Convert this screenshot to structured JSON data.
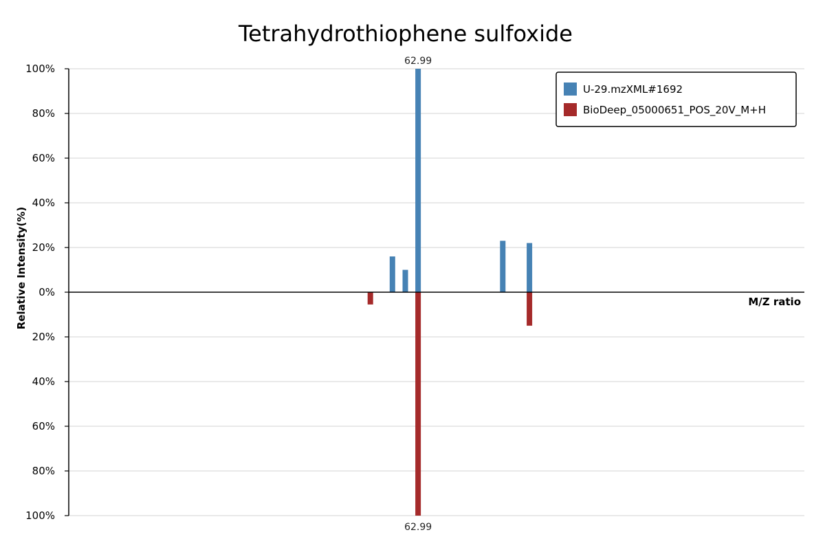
{
  "chart_data": {
    "type": "bar",
    "title": "Tetrahydrothiophene sulfoxide",
    "xlabel": "M/Z ratio",
    "ylabel": "Relative Intensity(%)",
    "y_ticks_top": [
      "0%",
      "20%",
      "40%",
      "60%",
      "80%",
      "100%"
    ],
    "y_ticks_bottom": [
      "20%",
      "40%",
      "60%",
      "80%",
      "100%"
    ],
    "ylim": [
      -100,
      100
    ],
    "xlim": [
      25,
      105
    ],
    "grid": true,
    "legend_position": "top-right",
    "series": [
      {
        "name": "U-29.mzXML#1692",
        "color": "#4682b4",
        "direction": "up",
        "peaks": [
          {
            "mz": 60.2,
            "intensity": 16
          },
          {
            "mz": 61.6,
            "intensity": 10
          },
          {
            "mz": 62.99,
            "intensity": 100,
            "label": "62.99"
          },
          {
            "mz": 72.2,
            "intensity": 23
          },
          {
            "mz": 75.1,
            "intensity": 22
          }
        ]
      },
      {
        "name": "BioDeep_05000651_POS_20V_M+H",
        "color": "#a52a2a",
        "direction": "down",
        "peaks": [
          {
            "mz": 57.8,
            "intensity": 5.5
          },
          {
            "mz": 62.99,
            "intensity": 100,
            "label": "62.99"
          },
          {
            "mz": 75.1,
            "intensity": 15
          }
        ]
      }
    ]
  }
}
